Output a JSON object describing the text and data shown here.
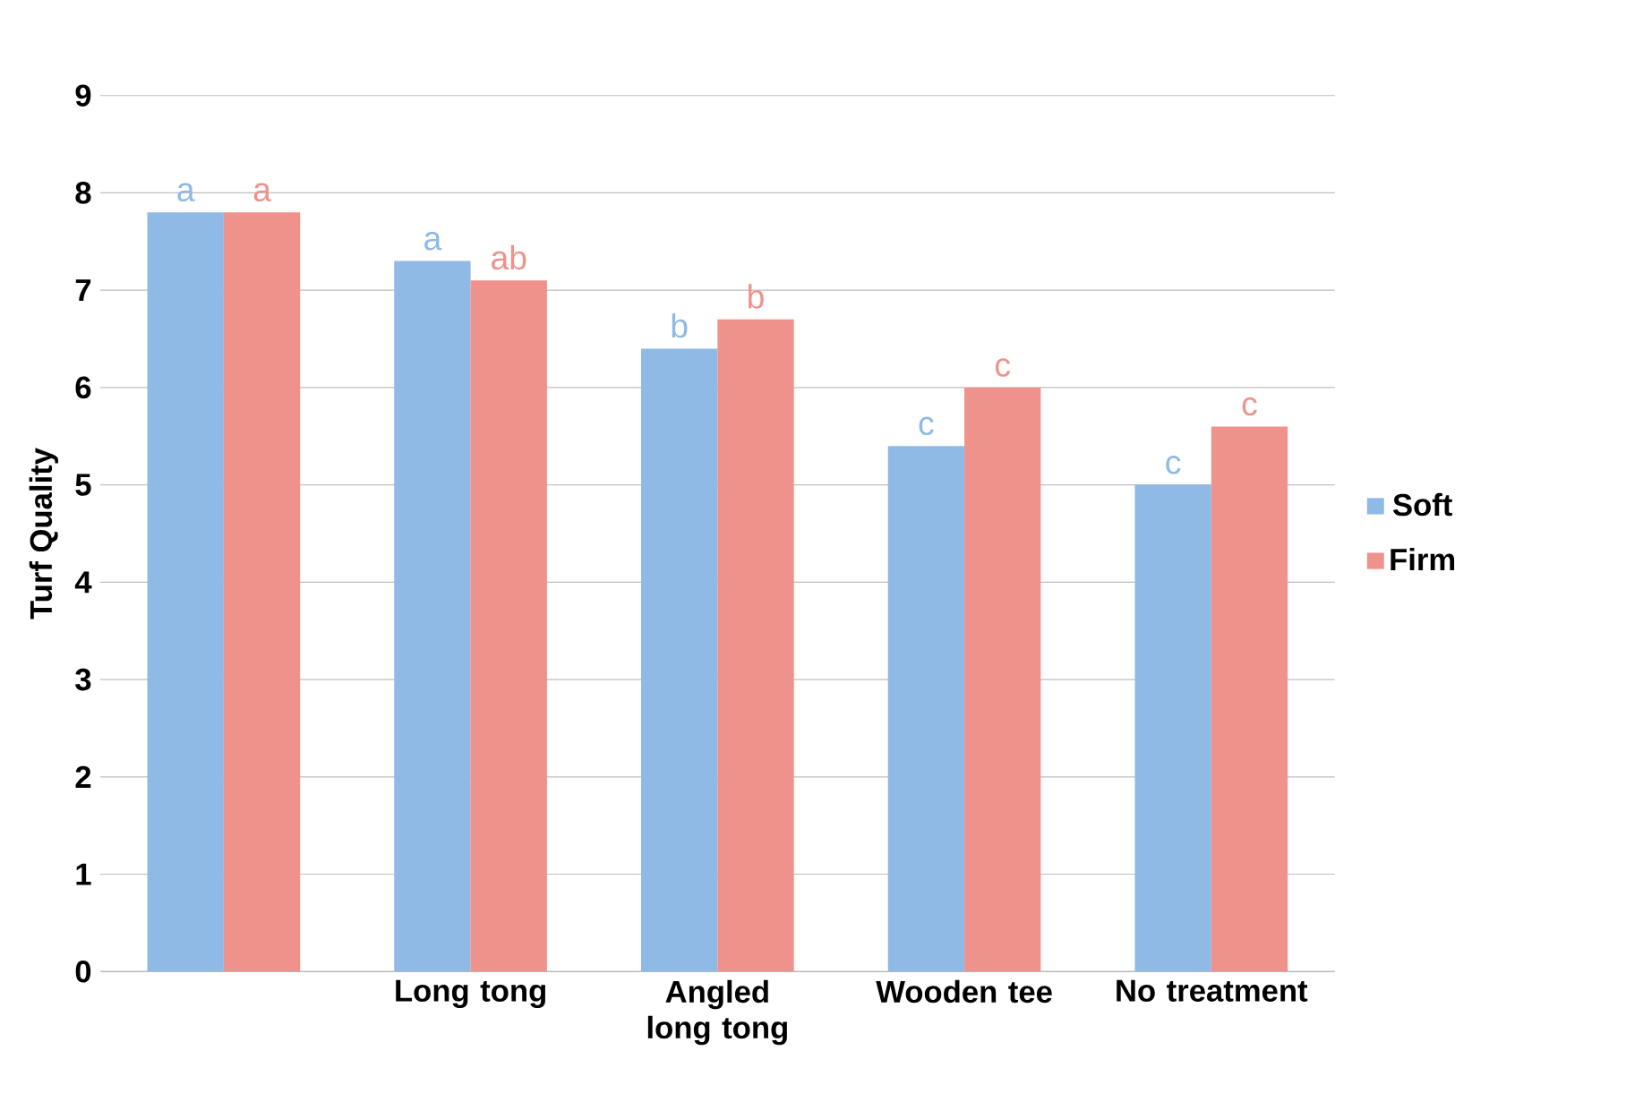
{
  "chart_data": {
    "type": "bar",
    "ylabel": "Turf Quality",
    "categories": [
      null,
      "Long tong",
      "Angled long tong",
      "Wooden tee",
      "No treatment"
    ],
    "series": [
      {
        "name": "Soft",
        "color": "#8fbae6",
        "values": [
          7.8,
          7.3,
          6.4,
          5.4,
          5.0
        ],
        "value_labels": [
          "a",
          "a",
          "b",
          "c",
          "c"
        ]
      },
      {
        "name": "Firm",
        "color": "#f0928c",
        "values": [
          7.8,
          7.1,
          6.7,
          6.0,
          5.6
        ],
        "value_labels": [
          "a",
          "ab",
          "b",
          "c",
          "c"
        ]
      }
    ],
    "ylim": [
      0,
      9
    ],
    "yticks": [
      0,
      1,
      2,
      3,
      4,
      5,
      6,
      7,
      8,
      9
    ],
    "grid": "y",
    "legend": "right"
  }
}
